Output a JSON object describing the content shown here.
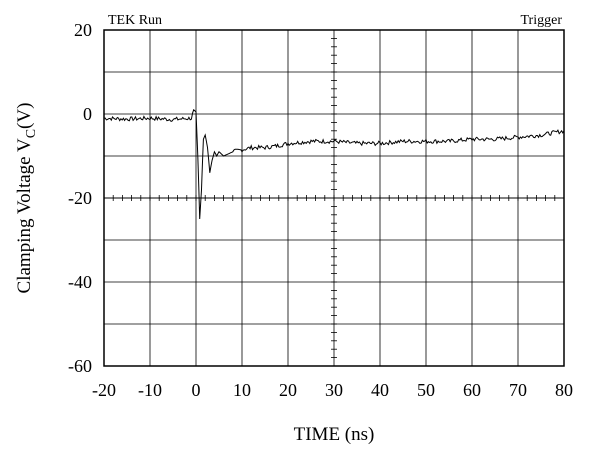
{
  "chart_data": {
    "type": "line",
    "header_left": "TEK Run",
    "header_right": "Trigger",
    "xlabel": "TIME  (ns)",
    "ylabel_main": "Clamping Voltage V",
    "ylabel_sub": "C",
    "ylabel_unit": "(V)",
    "xlim": [
      -20,
      80
    ],
    "ylim": [
      -60,
      20
    ],
    "x_ticks": [
      -20,
      -10,
      0,
      10,
      20,
      30,
      40,
      50,
      60,
      70,
      80
    ],
    "y_ticks": [
      20,
      0,
      -20,
      -40,
      -60
    ],
    "x_tick_labels": [
      "-20",
      "-10",
      "0",
      "10",
      "20",
      "30",
      "40",
      "50",
      "60",
      "70",
      "80"
    ],
    "y_tick_labels": [
      "20",
      "0",
      "-20",
      "-40",
      "-60"
    ],
    "grid": true,
    "series": [
      {
        "x": [
          -20,
          -15,
          -10,
          -5,
          -1,
          -0.5,
          0,
          0.4,
          0.8,
          1.2,
          1.6,
          2.0,
          2.5,
          3.0,
          3.5,
          4.0,
          4.5,
          5.0,
          6.0,
          7.0,
          8.0,
          10,
          12,
          15,
          18,
          20,
          25,
          30,
          35,
          40,
          45,
          50,
          55,
          60,
          65,
          70,
          75,
          80
        ],
        "y": [
          -1,
          -1.2,
          -1,
          -1.3,
          -1,
          1,
          0.5,
          -10,
          -25,
          -18,
          -6,
          -5,
          -8,
          -14,
          -11,
          -9,
          -10,
          -9,
          -10,
          -9.5,
          -9,
          -8.5,
          -8,
          -8,
          -7.5,
          -7,
          -6.5,
          -6.5,
          -7,
          -7,
          -6.5,
          -6.5,
          -6.5,
          -6,
          -6,
          -5.5,
          -5,
          -4
        ]
      }
    ]
  }
}
